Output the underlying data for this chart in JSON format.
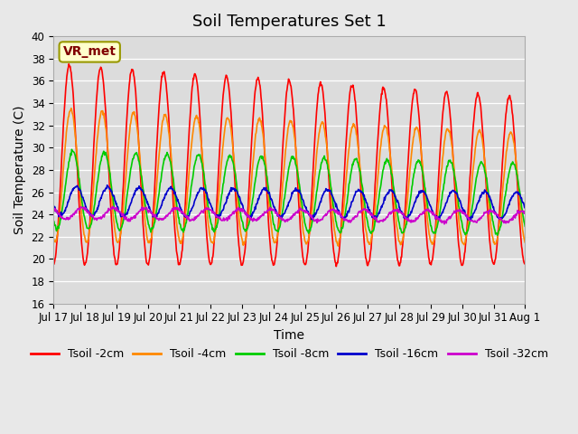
{
  "title": "Soil Temperatures Set 1",
  "xlabel": "Time",
  "ylabel": "Soil Temperature (C)",
  "ylim": [
    16,
    40
  ],
  "yticks": [
    16,
    18,
    20,
    22,
    24,
    26,
    28,
    30,
    32,
    34,
    36,
    38,
    40
  ],
  "background_color": "#e8e8e8",
  "plot_bg_color": "#dcdcdc",
  "annotation_text": "VR_met",
  "annotation_box_color": "#ffffcc",
  "annotation_text_color": "#800000",
  "series": [
    {
      "label": "Tsoil -2cm",
      "color": "#ff0000",
      "amplitude": 9.0,
      "mean": 28.5,
      "phase": 0.0,
      "amp_decay": 1.5,
      "mean_decay": 1.5
    },
    {
      "label": "Tsoil -4cm",
      "color": "#ff8800",
      "amplitude": 6.0,
      "mean": 27.5,
      "phase": 0.3,
      "amp_decay": 1.0,
      "mean_decay": 1.2
    },
    {
      "label": "Tsoil -8cm",
      "color": "#00cc00",
      "amplitude": 3.5,
      "mean": 26.2,
      "phase": 0.7,
      "amp_decay": 0.3,
      "mean_decay": 0.8
    },
    {
      "label": "Tsoil -16cm",
      "color": "#0000cc",
      "amplitude": 1.3,
      "mean": 25.2,
      "phase": 1.4,
      "amp_decay": 0.1,
      "mean_decay": 0.4
    },
    {
      "label": "Tsoil -32cm",
      "color": "#cc00cc",
      "amplitude": 0.5,
      "mean": 24.1,
      "phase": 2.5,
      "amp_decay": 0.0,
      "mean_decay": 0.3
    }
  ],
  "xtick_labels": [
    "Jul 17",
    "Jul 18",
    "Jul 19",
    "Jul 20",
    "Jul 21",
    "Jul 22",
    "Jul 23",
    "Jul 24",
    "Jul 25",
    "Jul 26",
    "Jul 27",
    "Jul 28",
    "Jul 29",
    "Jul 30",
    "Jul 31",
    "Aug 1"
  ],
  "n_points": 960,
  "n_days": 15,
  "linewidth": 1.2,
  "title_fontsize": 13,
  "axis_label_fontsize": 10,
  "tick_fontsize": 8.5,
  "legend_fontsize": 9
}
